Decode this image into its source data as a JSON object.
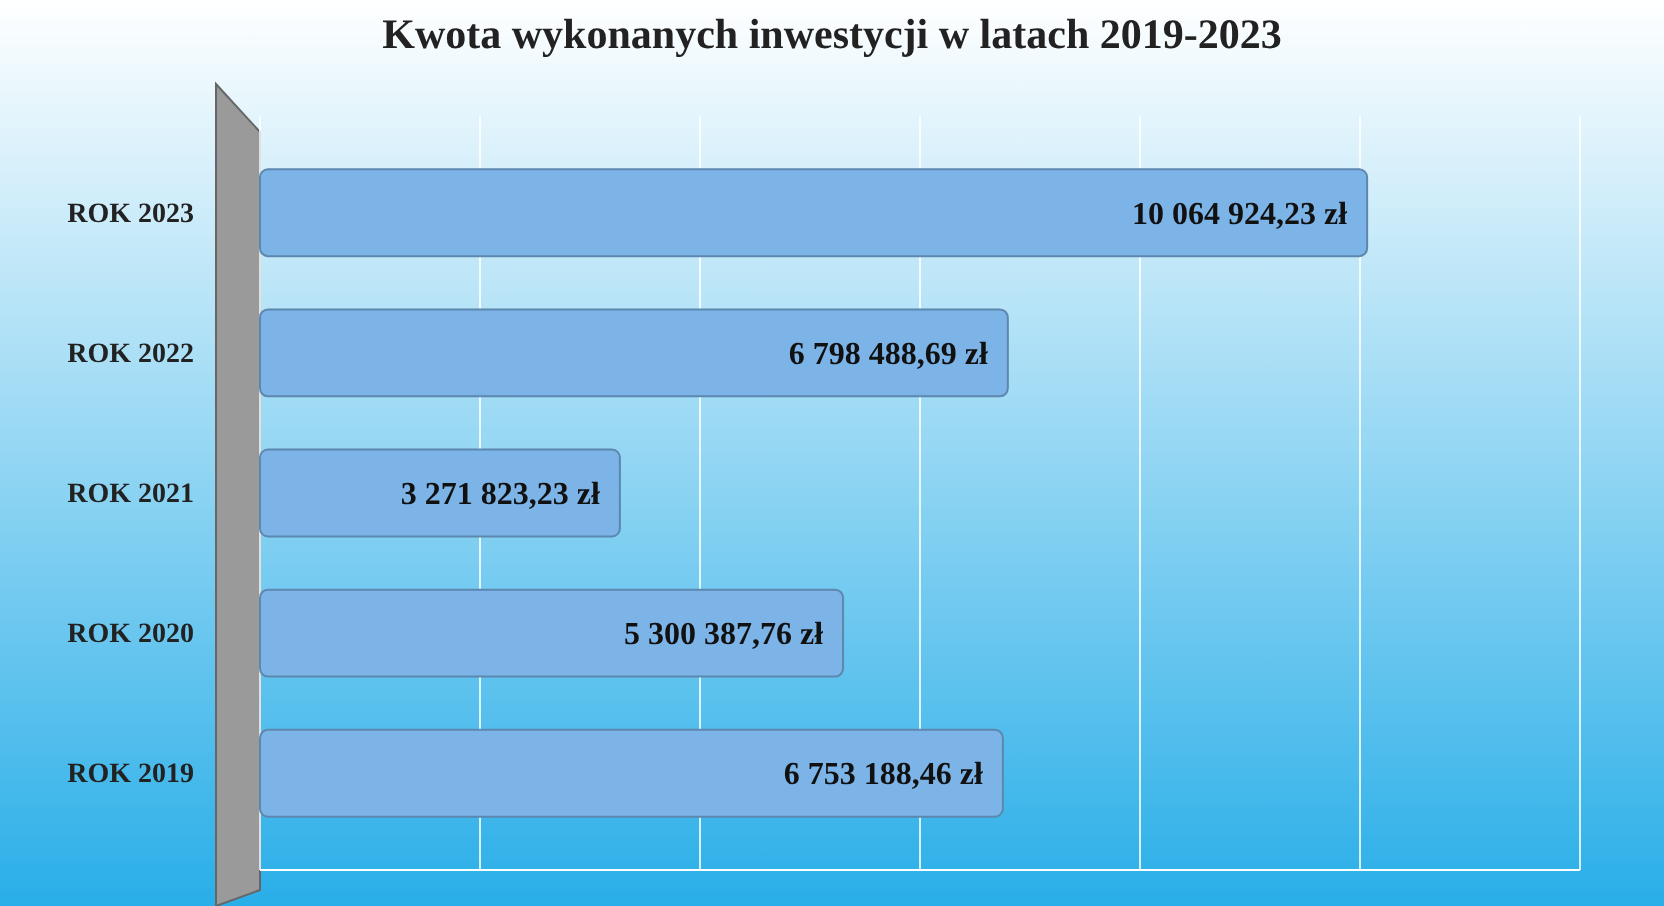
{
  "chart_data": {
    "type": "bar",
    "orientation": "horizontal",
    "title": "Kwota wykonanych inwestycji w latach 2019-2023",
    "categories": [
      "ROK 2023",
      "ROK 2022",
      "ROK 2021",
      "ROK 2020",
      "ROK 2019"
    ],
    "values": [
      10064924.23,
      6798488.69,
      3271823.23,
      5300387.76,
      6753188.46
    ],
    "value_labels": [
      "10 064 924,23 zł",
      "6 798 488,69 zł",
      "3 271 823,23 zł",
      "5 300 387,76 zł",
      "6 753 188,46 zł"
    ],
    "color": "#7cb4e8",
    "xlim": [
      0,
      12000000
    ],
    "xticks": [
      {
        "value": 0,
        "label": null
      },
      {
        "value": 2000000,
        "label": null
      },
      {
        "value": 4000000,
        "label": null
      },
      {
        "value": 6000000,
        "label": null
      },
      {
        "value": 8000000,
        "label": null
      },
      {
        "value": 10000000,
        "label": null
      },
      {
        "value": 12000000,
        "label": null
      }
    ],
    "grid": "x",
    "tick_labels": "y"
  }
}
